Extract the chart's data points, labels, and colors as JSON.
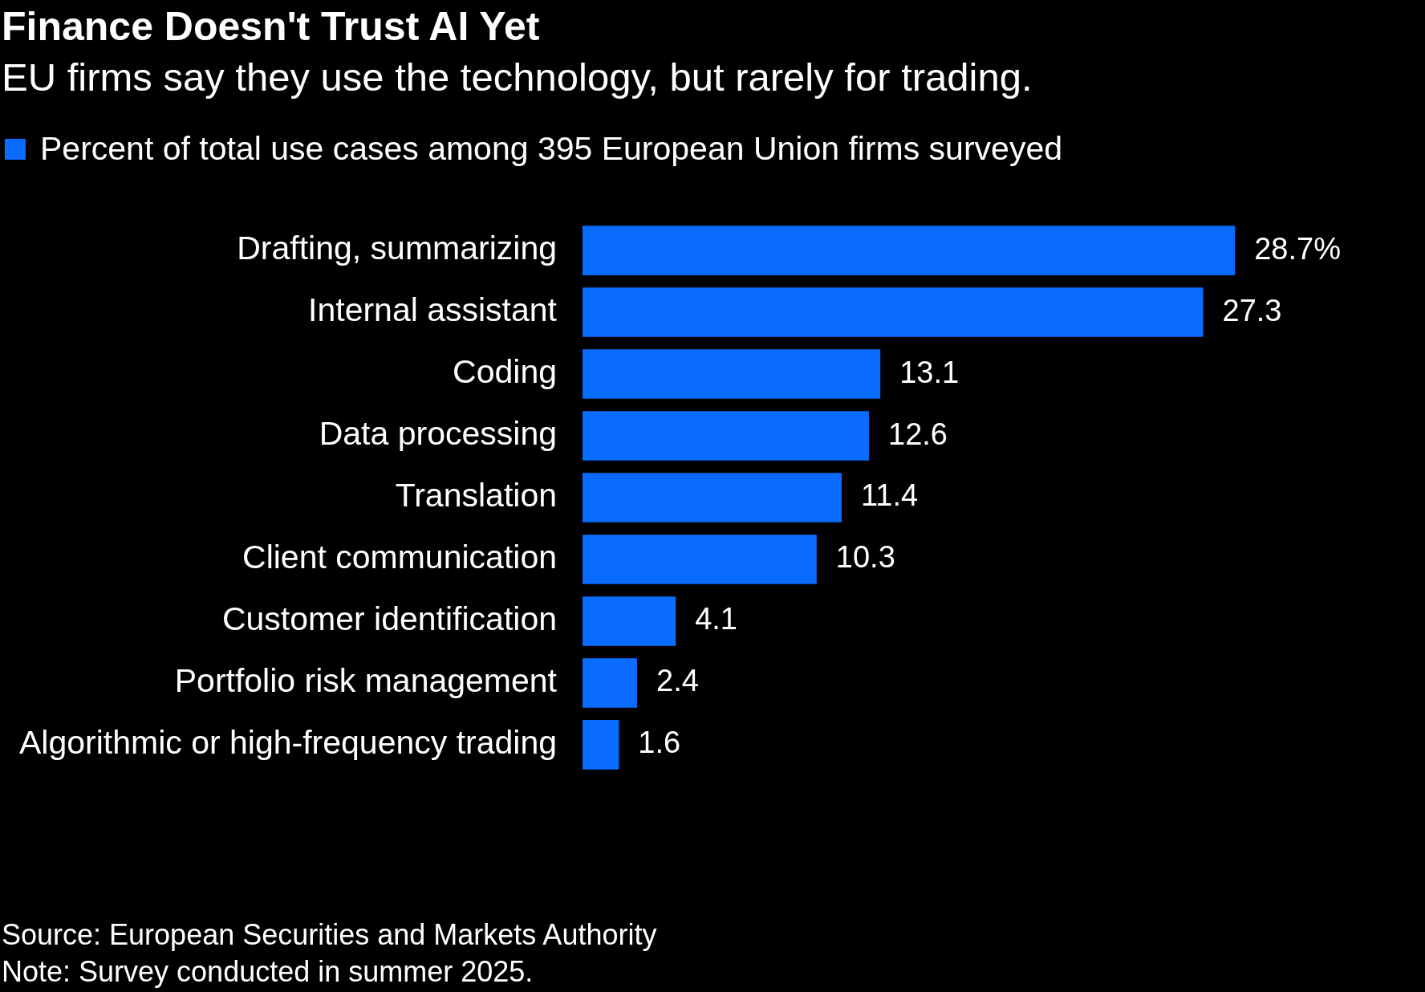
{
  "chart_data": {
    "type": "bar",
    "orientation": "horizontal",
    "title": "Finance Doesn't Trust AI Yet",
    "subtitle": "EU firms say they use the technology, but rarely for trading.",
    "categories": [
      "Drafting, summarizing",
      "Internal assistant",
      "Coding",
      "Data processing",
      "Translation",
      "Client communication",
      "Customer identification",
      "Portfolio risk management",
      "Algorithmic or high-frequency trading"
    ],
    "series": [
      {
        "name": "Percent of total use cases among 395 European Union firms surveyed",
        "color": "#0a6cff",
        "values": [
          28.7,
          27.3,
          13.1,
          12.6,
          11.4,
          10.3,
          4.1,
          2.4,
          1.6
        ],
        "value_labels": [
          "28.7%",
          "27.3",
          "13.1",
          "12.6",
          "11.4",
          "10.3",
          "4.1",
          "2.4",
          "1.6"
        ]
      }
    ],
    "legend": "top left",
    "annotations": [
      "Source: European Securities and Markets Authority",
      "Note: Survey conducted in summer 2025."
    ]
  }
}
